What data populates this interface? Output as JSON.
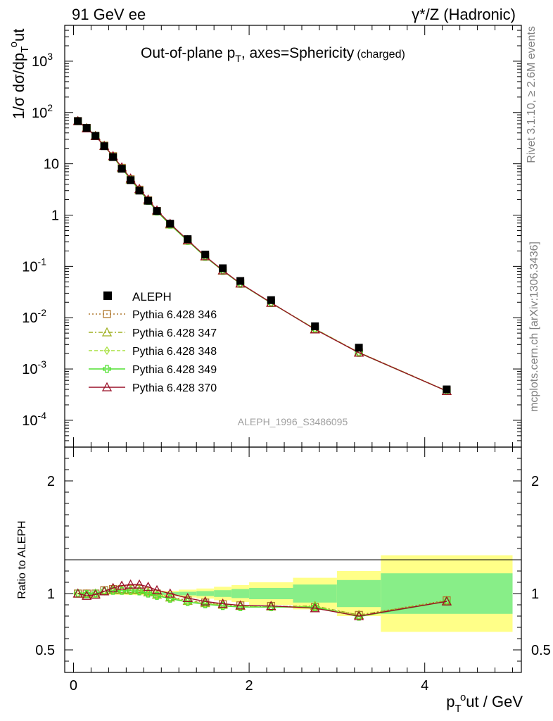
{
  "header": {
    "left": "91 GeV ee",
    "right": "γ*/Z (Hadronic)"
  },
  "side_labels": {
    "rivet": "Rivet 3.1.10, ≥ 2.6M events",
    "mcplots": "mcplots.cern.ch [arXiv:1306.3436]"
  },
  "chart_data": {
    "type": "scatter",
    "title": "Out-of-plane p_T, axes=Sphericity (charged)",
    "analysis": "ALEPH_1996_S3486095",
    "xlabel": "p_T^out / GeV",
    "ylabel_main": "1/σ dσ/dp_T^out",
    "ylabel_ratio": "Ratio to ALEPH",
    "xlim": [
      -0.1,
      5.1
    ],
    "ylim_main": [
      3e-05,
      5000
    ],
    "yscale_main": "log",
    "ylim_ratio": [
      0.3,
      2.3
    ],
    "legend_placement": "lower-left",
    "x_ticks": [
      "0",
      "2",
      "4"
    ],
    "main_y_ticks": [
      "10^-4",
      "10^-3",
      "10^-2",
      "10^-1",
      "1",
      "10",
      "10^2",
      "10^3"
    ],
    "ratio_y_ticks": [
      "0.5",
      "1",
      "2"
    ],
    "x": [
      0.05,
      0.15,
      0.25,
      0.35,
      0.45,
      0.55,
      0.65,
      0.75,
      0.85,
      0.95,
      1.1,
      1.3,
      1.5,
      1.7,
      1.9,
      2.25,
      2.75,
      3.25,
      4.25
    ],
    "data": {
      "name": "ALEPH",
      "values": [
        68,
        50,
        35,
        22,
        13.5,
        8.0,
        4.8,
        3.0,
        1.9,
        1.2,
        0.68,
        0.34,
        0.17,
        0.092,
        0.052,
        0.022,
        0.0068,
        0.0026,
        0.0004
      ],
      "band_x_edges": [
        0.0,
        0.1,
        0.2,
        0.3,
        0.4,
        0.5,
        0.6,
        0.7,
        0.8,
        0.9,
        1.0,
        1.2,
        1.4,
        1.6,
        1.8,
        2.0,
        2.5,
        3.0,
        3.5,
        5.0
      ],
      "band_stat": [
        0.005,
        0.005,
        0.005,
        0.005,
        0.005,
        0.005,
        0.005,
        0.006,
        0.008,
        0.01,
        0.012,
        0.016,
        0.022,
        0.03,
        0.04,
        0.05,
        0.08,
        0.12,
        0.18
      ],
      "band_total": [
        0.01,
        0.01,
        0.01,
        0.01,
        0.01,
        0.01,
        0.012,
        0.014,
        0.016,
        0.02,
        0.025,
        0.035,
        0.045,
        0.06,
        0.075,
        0.1,
        0.14,
        0.2,
        0.34
      ]
    },
    "series": [
      {
        "name": "Pythia 6.428 346",
        "color": "#b07a30",
        "marker": "square-open",
        "dash": "2,3",
        "ratio": [
          1.0,
          1.0,
          1.0,
          1.03,
          1.04,
          1.04,
          1.04,
          1.04,
          1.02,
          1.0,
          0.97,
          0.94,
          0.92,
          0.905,
          0.895,
          0.89,
          0.88,
          0.81,
          0.94
        ]
      },
      {
        "name": "Pythia 6.428 347",
        "color": "#9fb020",
        "marker": "triangle-open",
        "dash": "6,3,2,3",
        "ratio": [
          1.0,
          0.995,
          1.0,
          1.02,
          1.03,
          1.03,
          1.03,
          1.03,
          1.01,
          0.99,
          0.965,
          0.935,
          0.915,
          0.9,
          0.89,
          0.885,
          0.89,
          0.81,
          0.935
        ]
      },
      {
        "name": "Pythia 6.428 348",
        "color": "#a8e040",
        "marker": "diamond-open",
        "dash": "5,3",
        "ratio": [
          1.0,
          0.995,
          1.0,
          1.02,
          1.025,
          1.025,
          1.025,
          1.02,
          1.005,
          0.985,
          0.96,
          0.93,
          0.91,
          0.895,
          0.885,
          0.88,
          0.885,
          0.8,
          0.93
        ]
      },
      {
        "name": "Pythia 6.428 349",
        "color": "#50e030",
        "marker": "cross-open",
        "dash": "",
        "ratio": [
          1.0,
          0.995,
          1.0,
          1.02,
          1.025,
          1.025,
          1.025,
          1.02,
          1.0,
          0.98,
          0.955,
          0.925,
          0.905,
          0.89,
          0.88,
          0.88,
          0.88,
          0.795,
          0.93
        ]
      },
      {
        "name": "Pythia 6.428 370",
        "color": "#9a1028",
        "marker": "triangle-open",
        "dash": "",
        "ratio": [
          1.0,
          0.98,
          0.99,
          1.02,
          1.05,
          1.07,
          1.08,
          1.08,
          1.06,
          1.03,
          1.0,
          0.96,
          0.93,
          0.91,
          0.895,
          0.89,
          0.87,
          0.8,
          0.93
        ]
      }
    ]
  }
}
